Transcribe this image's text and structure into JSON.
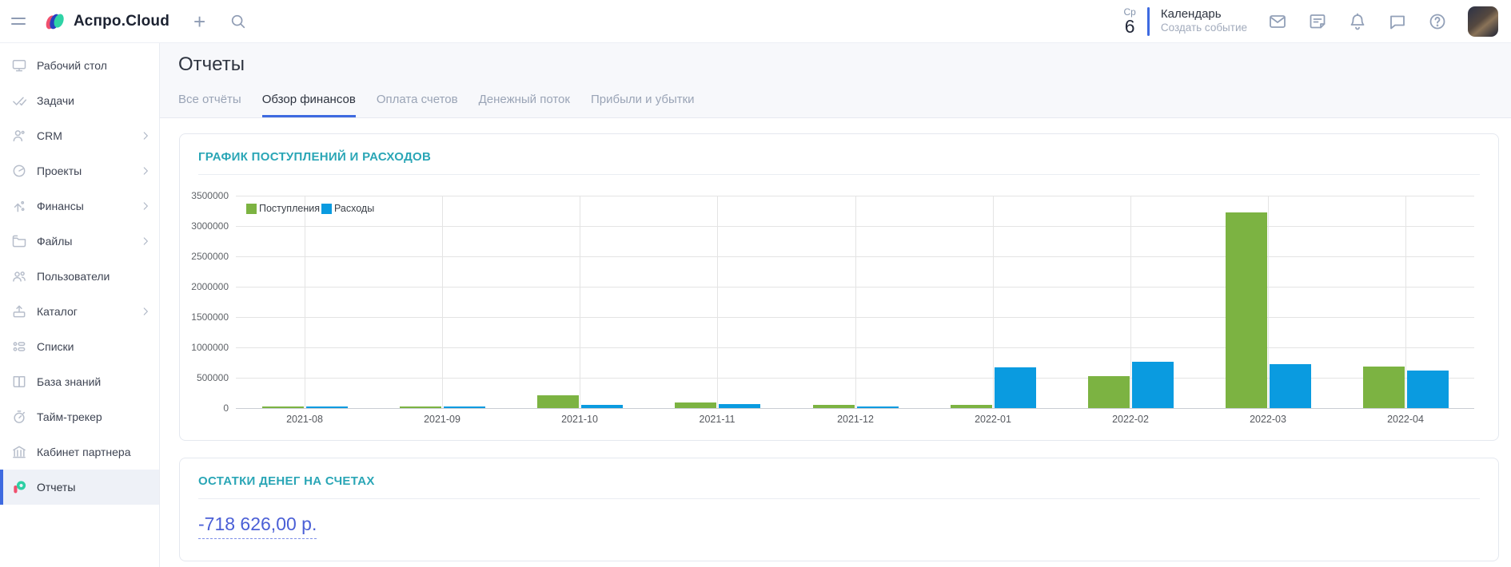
{
  "topbar": {
    "brand": "Аспро.Cloud",
    "date": {
      "weekday": "Ср",
      "day": "6"
    },
    "calendar": {
      "title": "Календарь",
      "subtitle": "Создать событие"
    },
    "icons": [
      "mail-icon",
      "notes-icon",
      "bell-icon",
      "chat-icon",
      "help-icon"
    ]
  },
  "sidebar": {
    "items": [
      {
        "label": "Рабочий стол",
        "icon": "desktop-icon",
        "chevron": false,
        "active": false
      },
      {
        "label": "Задачи",
        "icon": "tasks-icon",
        "chevron": false,
        "active": false
      },
      {
        "label": "CRM",
        "icon": "crm-icon",
        "chevron": true,
        "active": false
      },
      {
        "label": "Проекты",
        "icon": "projects-icon",
        "chevron": true,
        "active": false
      },
      {
        "label": "Финансы",
        "icon": "finance-icon",
        "chevron": true,
        "active": false
      },
      {
        "label": "Файлы",
        "icon": "files-icon",
        "chevron": true,
        "active": false
      },
      {
        "label": "Пользователи",
        "icon": "users-icon",
        "chevron": false,
        "active": false
      },
      {
        "label": "Каталог",
        "icon": "catalog-icon",
        "chevron": true,
        "active": false
      },
      {
        "label": "Списки",
        "icon": "lists-icon",
        "chevron": false,
        "active": false
      },
      {
        "label": "База знаний",
        "icon": "knowledge-icon",
        "chevron": false,
        "active": false
      },
      {
        "label": "Тайм-трекер",
        "icon": "timer-icon",
        "chevron": false,
        "active": false
      },
      {
        "label": "Кабинет партнера",
        "icon": "partner-icon",
        "chevron": false,
        "active": false
      },
      {
        "label": "Отчеты",
        "icon": "reports-icon",
        "chevron": false,
        "active": true
      }
    ]
  },
  "page": {
    "title": "Отчеты",
    "tabs": [
      {
        "label": "Все отчёты",
        "active": false
      },
      {
        "label": "Обзор финансов",
        "active": true
      },
      {
        "label": "Оплата счетов",
        "active": false
      },
      {
        "label": "Денежный поток",
        "active": false
      },
      {
        "label": "Прибыли и убытки",
        "active": false
      }
    ]
  },
  "cards": {
    "chart_card_title": "ГРАФИК ПОСТУПЛЕНИЙ И РАСХОДОВ",
    "balance_card_title": "ОСТАТКИ ДЕНЕГ НА СЧЕТАХ",
    "balance_value": "-718 626,00 р."
  },
  "colors": {
    "accent_blue": "#3e6ae0",
    "teal_heading": "#2aa6b6",
    "bar_green": "#7cb342",
    "bar_blue": "#0a9be0",
    "link_blue": "#4a5fd6"
  },
  "chart_data": {
    "type": "bar",
    "title": "ГРАФИК ПОСТУПЛЕНИЙ И РАСХОДОВ",
    "categories": [
      "2021-08",
      "2021-09",
      "2021-10",
      "2021-11",
      "2021-12",
      "2022-01",
      "2022-02",
      "2022-03",
      "2022-04"
    ],
    "series": [
      {
        "name": "Поступления",
        "color": "#7cb342",
        "values": [
          15000,
          15000,
          210000,
          95000,
          55000,
          50000,
          530000,
          3220000,
          690000
        ]
      },
      {
        "name": "Расходы",
        "color": "#0a9be0",
        "values": [
          15000,
          15000,
          55000,
          65000,
          25000,
          670000,
          760000,
          730000,
          620000
        ]
      }
    ],
    "ylim": [
      0,
      3500000
    ],
    "ytick_step": 500000,
    "grid": true,
    "legend_position": "top-left-inside"
  }
}
